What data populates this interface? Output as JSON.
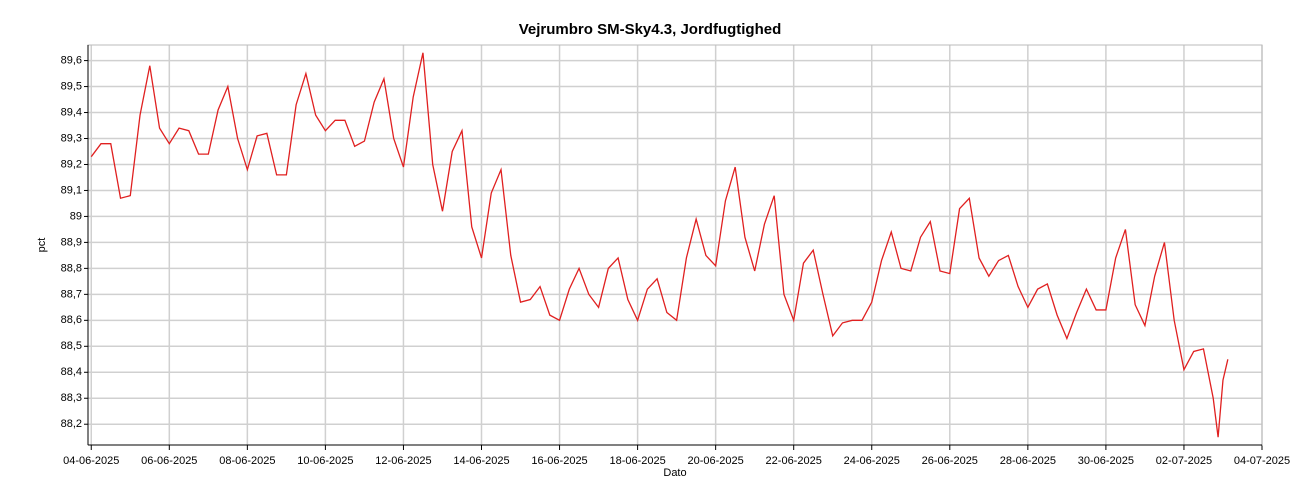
{
  "chart_data": {
    "type": "line",
    "title": "Vejrumbro SM-Sky4.3, Jordfugtighed",
    "x_label": "Dato",
    "y_label": "pct",
    "color": "#e02020",
    "grid": true,
    "xlim": [
      "2025-06-03T22:00",
      "2025-07-04T00:00"
    ],
    "xticks": [
      {
        "value": "2025-06-04T00:00",
        "label": "04-06-2025"
      },
      {
        "value": "2025-06-06T00:00",
        "label": "06-06-2025"
      },
      {
        "value": "2025-06-08T00:00",
        "label": "08-06-2025"
      },
      {
        "value": "2025-06-10T00:00",
        "label": "10-06-2025"
      },
      {
        "value": "2025-06-12T00:00",
        "label": "12-06-2025"
      },
      {
        "value": "2025-06-14T00:00",
        "label": "14-06-2025"
      },
      {
        "value": "2025-06-16T00:00",
        "label": "16-06-2025"
      },
      {
        "value": "2025-06-18T00:00",
        "label": "18-06-2025"
      },
      {
        "value": "2025-06-20T00:00",
        "label": "20-06-2025"
      },
      {
        "value": "2025-06-22T00:00",
        "label": "22-06-2025"
      },
      {
        "value": "2025-06-24T00:00",
        "label": "24-06-2025"
      },
      {
        "value": "2025-06-26T00:00",
        "label": "26-06-2025"
      },
      {
        "value": "2025-06-28T00:00",
        "label": "28-06-2025"
      },
      {
        "value": "2025-06-30T00:00",
        "label": "30-06-2025"
      },
      {
        "value": "2025-07-02T00:00",
        "label": "02-07-2025"
      },
      {
        "value": "2025-07-04T00:00",
        "label": "04-07-2025"
      }
    ],
    "ylim": [
      88.12,
      89.66
    ],
    "yticks": [
      {
        "value": 88.2,
        "label": "88,2"
      },
      {
        "value": 88.3,
        "label": "88,3"
      },
      {
        "value": 88.4,
        "label": "88,4"
      },
      {
        "value": 88.5,
        "label": "88,5"
      },
      {
        "value": 88.6,
        "label": "88,6"
      },
      {
        "value": 88.7,
        "label": "88,7"
      },
      {
        "value": 88.8,
        "label": "88,8"
      },
      {
        "value": 88.9,
        "label": "88,9"
      },
      89,
      {
        "value": 89.1,
        "label": "89,1"
      },
      {
        "value": 89.2,
        "label": "89,2"
      },
      {
        "value": 89.3,
        "label": "89,3"
      },
      {
        "value": 89.4,
        "label": "89,4"
      },
      {
        "value": 89.5,
        "label": "89,5"
      },
      {
        "value": 89.6,
        "label": "89,6"
      }
    ],
    "x": [
      "2025-06-04T00:00",
      "2025-06-04T06:00",
      "2025-06-04T12:00",
      "2025-06-04T18:00",
      "2025-06-05T00:00",
      "2025-06-05T06:00",
      "2025-06-05T12:00",
      "2025-06-05T18:00",
      "2025-06-06T00:00",
      "2025-06-06T06:00",
      "2025-06-06T12:00",
      "2025-06-06T18:00",
      "2025-06-07T00:00",
      "2025-06-07T06:00",
      "2025-06-07T12:00",
      "2025-06-07T18:00",
      "2025-06-08T00:00",
      "2025-06-08T06:00",
      "2025-06-08T12:00",
      "2025-06-08T18:00",
      "2025-06-09T00:00",
      "2025-06-09T06:00",
      "2025-06-09T12:00",
      "2025-06-09T18:00",
      "2025-06-10T00:00",
      "2025-06-10T06:00",
      "2025-06-10T12:00",
      "2025-06-10T18:00",
      "2025-06-11T00:00",
      "2025-06-11T06:00",
      "2025-06-11T12:00",
      "2025-06-11T18:00",
      "2025-06-12T00:00",
      "2025-06-12T06:00",
      "2025-06-12T12:00",
      "2025-06-12T18:00",
      "2025-06-13T00:00",
      "2025-06-13T06:00",
      "2025-06-13T12:00",
      "2025-06-13T18:00",
      "2025-06-14T00:00",
      "2025-06-14T06:00",
      "2025-06-14T12:00",
      "2025-06-14T18:00",
      "2025-06-15T00:00",
      "2025-06-15T06:00",
      "2025-06-15T12:00",
      "2025-06-15T18:00",
      "2025-06-16T00:00",
      "2025-06-16T06:00",
      "2025-06-16T12:00",
      "2025-06-16T18:00",
      "2025-06-17T00:00",
      "2025-06-17T06:00",
      "2025-06-17T12:00",
      "2025-06-17T18:00",
      "2025-06-18T00:00",
      "2025-06-18T06:00",
      "2025-06-18T12:00",
      "2025-06-18T18:00",
      "2025-06-19T00:00",
      "2025-06-19T06:00",
      "2025-06-19T12:00",
      "2025-06-19T18:00",
      "2025-06-20T00:00",
      "2025-06-20T06:00",
      "2025-06-20T12:00",
      "2025-06-20T18:00",
      "2025-06-21T00:00",
      "2025-06-21T06:00",
      "2025-06-21T12:00",
      "2025-06-21T18:00",
      "2025-06-22T00:00",
      "2025-06-22T06:00",
      "2025-06-22T12:00",
      "2025-06-22T18:00",
      "2025-06-23T00:00",
      "2025-06-23T06:00",
      "2025-06-23T12:00",
      "2025-06-23T18:00",
      "2025-06-24T00:00",
      "2025-06-24T06:00",
      "2025-06-24T12:00",
      "2025-06-24T18:00",
      "2025-06-25T00:00",
      "2025-06-25T06:00",
      "2025-06-25T12:00",
      "2025-06-25T18:00",
      "2025-06-26T00:00",
      "2025-06-26T06:00",
      "2025-06-26T12:00",
      "2025-06-26T18:00",
      "2025-06-27T00:00",
      "2025-06-27T06:00",
      "2025-06-27T12:00",
      "2025-06-27T18:00",
      "2025-06-28T00:00",
      "2025-06-28T06:00",
      "2025-06-28T12:00",
      "2025-06-28T18:00",
      "2025-06-29T00:00",
      "2025-06-29T06:00",
      "2025-06-29T12:00",
      "2025-06-29T18:00",
      "2025-06-30T00:00",
      "2025-06-30T06:00",
      "2025-06-30T12:00",
      "2025-06-30T18:00",
      "2025-07-01T00:00",
      "2025-07-01T06:00",
      "2025-07-01T12:00",
      "2025-07-01T18:00",
      "2025-07-02T00:00",
      "2025-07-02T06:00",
      "2025-07-02T12:00",
      "2025-07-02T18:00",
      "2025-07-02T21:00",
      "2025-07-03T00:00",
      "2025-07-03T03:00"
    ],
    "values": [
      89.23,
      89.28,
      89.28,
      89.07,
      89.08,
      89.39,
      89.58,
      89.34,
      89.28,
      89.34,
      89.33,
      89.24,
      89.24,
      89.41,
      89.5,
      89.3,
      89.18,
      89.31,
      89.32,
      89.16,
      89.16,
      89.43,
      89.55,
      89.39,
      89.33,
      89.37,
      89.37,
      89.27,
      89.29,
      89.44,
      89.53,
      89.3,
      89.19,
      89.46,
      89.63,
      89.2,
      89.02,
      89.25,
      89.33,
      88.96,
      88.84,
      89.09,
      89.18,
      88.85,
      88.67,
      88.68,
      88.73,
      88.62,
      88.6,
      88.72,
      88.8,
      88.7,
      88.65,
      88.8,
      88.84,
      88.68,
      88.6,
      88.72,
      88.76,
      88.63,
      88.6,
      88.84,
      88.99,
      88.85,
      88.81,
      89.06,
      89.19,
      88.92,
      88.79,
      88.97,
      89.08,
      88.7,
      88.6,
      88.82,
      88.87,
      88.7,
      88.54,
      88.59,
      88.6,
      88.6,
      88.67,
      88.83,
      88.94,
      88.8,
      88.79,
      88.92,
      88.98,
      88.79,
      88.78,
      89.03,
      89.07,
      88.84,
      88.77,
      88.83,
      88.85,
      88.73,
      88.65,
      88.72,
      88.74,
      88.62,
      88.53,
      88.63,
      88.72,
      88.64,
      88.64,
      88.84,
      88.95,
      88.66,
      88.58,
      88.77,
      88.9,
      88.6,
      88.41,
      88.48,
      88.49,
      88.3,
      88.15,
      88.37,
      88.45
    ]
  }
}
